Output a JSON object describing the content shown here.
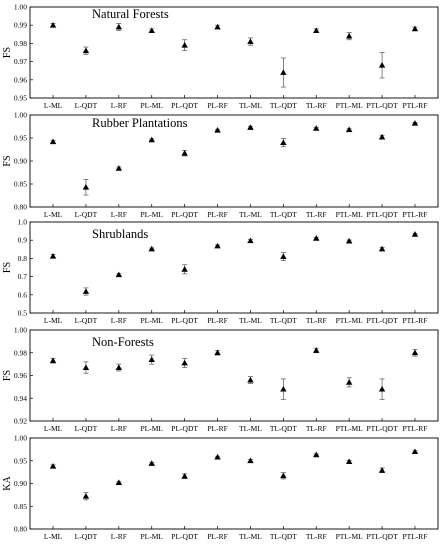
{
  "chart_data": [
    {
      "type": "scatter",
      "title": "Natural Forests",
      "ylabel": "FS",
      "ylim": [
        0.95,
        1.0
      ],
      "yticks": [
        0.95,
        0.96,
        0.97,
        0.98,
        0.99,
        1.0
      ],
      "ytick_labels": [
        "0.95",
        "0.96",
        "0.97",
        "0.98",
        "0.99",
        "1.00"
      ],
      "categories": [
        "L-ML",
        "L-QDT",
        "L-RF",
        "PL-ML",
        "PL-QDT",
        "PL-RF",
        "TL-ML",
        "TL-QDT",
        "TL-RF",
        "PTL-ML",
        "PTL-QDT",
        "PTL-RF"
      ],
      "values": [
        0.99,
        0.976,
        0.989,
        0.987,
        0.979,
        0.989,
        0.981,
        0.964,
        0.987,
        0.984,
        0.968,
        0.988
      ],
      "errors": [
        0.001,
        0.002,
        0.002,
        0.001,
        0.003,
        0.001,
        0.002,
        0.008,
        0.001,
        0.002,
        0.007,
        0.001
      ]
    },
    {
      "type": "scatter",
      "title": "Rubber Plantations",
      "ylabel": "FS",
      "ylim": [
        0.8,
        1.0
      ],
      "yticks": [
        0.8,
        0.85,
        0.9,
        0.95,
        1.0
      ],
      "ytick_labels": [
        "0.80",
        "0.85",
        "0.90",
        "0.95",
        "1.00"
      ],
      "categories": [
        "L-ML",
        "L-QDT",
        "L-RF",
        "PL-ML",
        "PL-QDT",
        "PL-RF",
        "TL-ML",
        "TL-QDT",
        "TL-RF",
        "PTL-ML",
        "PTL-QDT",
        "PTL-RF"
      ],
      "values": [
        0.942,
        0.843,
        0.884,
        0.946,
        0.917,
        0.967,
        0.973,
        0.94,
        0.971,
        0.968,
        0.952,
        0.982
      ],
      "errors": [
        0.003,
        0.017,
        0.003,
        0.002,
        0.006,
        0.002,
        0.002,
        0.009,
        0.002,
        0.002,
        0.004,
        0.002
      ]
    },
    {
      "type": "scatter",
      "title": "Shrublands",
      "ylabel": "FS",
      "ylim": [
        0.5,
        1.0
      ],
      "yticks": [
        0.5,
        0.6,
        0.7,
        0.8,
        0.9,
        1.0
      ],
      "ytick_labels": [
        "0.5",
        "0.6",
        "0.7",
        "0.8",
        "0.9",
        "1.0"
      ],
      "categories": [
        "L-ML",
        "L-QDT",
        "L-RF",
        "PL-ML",
        "PL-QDT",
        "PL-RF",
        "TL-ML",
        "TL-QDT",
        "TL-RF",
        "PTL-ML",
        "PTL-QDT",
        "PTL-RF"
      ],
      "values": [
        0.812,
        0.618,
        0.71,
        0.852,
        0.74,
        0.868,
        0.897,
        0.81,
        0.91,
        0.895,
        0.852,
        0.932
      ],
      "errors": [
        0.01,
        0.02,
        0.006,
        0.005,
        0.025,
        0.006,
        0.007,
        0.022,
        0.006,
        0.006,
        0.008,
        0.006
      ]
    },
    {
      "type": "scatter",
      "title": "Non-Forests",
      "ylabel": "FS",
      "ylim": [
        0.92,
        1.0
      ],
      "yticks": [
        0.92,
        0.94,
        0.96,
        0.98,
        1.0
      ],
      "ytick_labels": [
        "0.92",
        "0.94",
        "0.96",
        "0.98",
        "1.00"
      ],
      "categories": [
        "L-ML",
        "L-QDT",
        "L-RF",
        "PL-ML",
        "PL-QDT",
        "PL-RF",
        "TL-ML",
        "TL-QDT",
        "TL-RF",
        "PTL-ML",
        "PTL-QDT",
        "PTL-RF"
      ],
      "values": [
        0.973,
        0.967,
        0.967,
        0.974,
        0.971,
        0.98,
        0.956,
        0.948,
        0.982,
        0.954,
        0.948,
        0.98
      ],
      "errors": [
        0.002,
        0.005,
        0.003,
        0.004,
        0.004,
        0.002,
        0.003,
        0.009,
        0.002,
        0.004,
        0.009,
        0.003
      ]
    },
    {
      "type": "scatter",
      "title": "",
      "ylabel": "KA",
      "ylim": [
        0.8,
        1.0
      ],
      "yticks": [
        0.8,
        0.85,
        0.9,
        0.95,
        1.0
      ],
      "ytick_labels": [
        "0.80",
        "0.85",
        "0.90",
        "0.95",
        "1.00"
      ],
      "categories": [
        "L-ML",
        "L-QDT",
        "L-RF",
        "PL-ML",
        "PL-QDT",
        "PL-RF",
        "TL-ML",
        "TL-QDT",
        "TL-RF",
        "PTL-ML",
        "PTL-QDT",
        "PTL-RF"
      ],
      "values": [
        0.938,
        0.872,
        0.902,
        0.944,
        0.916,
        0.958,
        0.95,
        0.917,
        0.963,
        0.948,
        0.929,
        0.97
      ],
      "errors": [
        0.003,
        0.008,
        0.002,
        0.002,
        0.005,
        0.002,
        0.003,
        0.007,
        0.002,
        0.003,
        0.005,
        0.002
      ]
    }
  ]
}
